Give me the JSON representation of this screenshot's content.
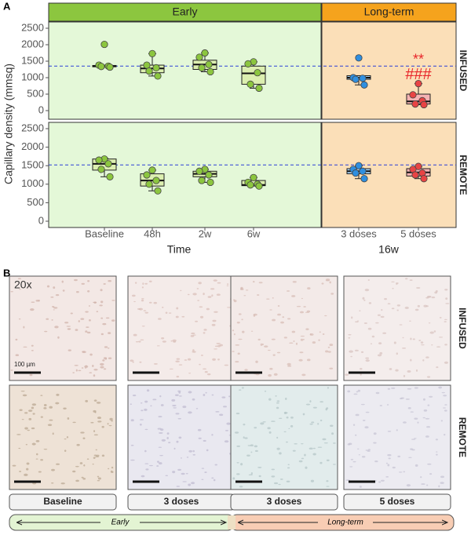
{
  "panel_a": {
    "label": "A",
    "y_label": "Capillary density (mmsq)",
    "groups": [
      {
        "name": "Early",
        "x_label": "Time",
        "header_color": "#8cc63f",
        "background": "#e4f8d8"
      },
      {
        "name": "Long-term",
        "x_label": "16w",
        "header_color": "#f5a31d",
        "background": "#fbdfb8"
      }
    ]
  },
  "chart_data": [
    {
      "type": "box",
      "row_label": "INFUSED",
      "ylim": [
        0,
        2500
      ],
      "yticks": [
        0,
        500,
        1000,
        1500,
        2000,
        2500
      ],
      "reference": 1350,
      "reference_color": "#2b3fd6",
      "boxes": [
        {
          "min": 1320,
          "q1": 1330,
          "median": 1350,
          "q3": 1370,
          "max": 1380,
          "points": [
            2010,
            1380,
            1350,
            1340,
            1320
          ],
          "color": "#8cc63f",
          "fill": "#dcefb0"
        },
        {
          "min": 1050,
          "q1": 1150,
          "median": 1280,
          "q3": 1380,
          "max": 1730,
          "points": [
            1730,
            1380,
            1300,
            1200,
            1050
          ],
          "color": "#8cc63f",
          "fill": "#dcefb0"
        },
        {
          "min": 1180,
          "q1": 1250,
          "median": 1400,
          "q3": 1530,
          "max": 1750,
          "points": [
            1750,
            1620,
            1400,
            1300,
            1180
          ],
          "color": "#8cc63f",
          "fill": "#dcefb0"
        },
        {
          "min": 680,
          "q1": 800,
          "median": 1130,
          "q3": 1350,
          "max": 1480,
          "points": [
            1480,
            1420,
            1150,
            800,
            680
          ],
          "color": "#8cc63f",
          "fill": "#dcefb0"
        },
        {
          "min": 780,
          "q1": 950,
          "median": 1000,
          "q3": 1060,
          "max": 1060,
          "points": [
            1600,
            1000,
            980,
            950,
            780
          ],
          "color": "#2f8fe0",
          "fill": "#a9d3f3"
        },
        {
          "min": 180,
          "q1": 200,
          "median": 280,
          "q3": 500,
          "max": 820,
          "points": [
            820,
            480,
            300,
            200,
            180
          ],
          "color": "#e84444",
          "fill": "#f5b3b3",
          "annotations": [
            "**",
            "###"
          ],
          "annotation_color": "#e8262a"
        }
      ]
    },
    {
      "type": "box",
      "row_label": "REMOTE",
      "ylim": [
        0,
        2500
      ],
      "yticks": [
        0,
        500,
        1000,
        1500,
        2000,
        2500
      ],
      "reference": 1520,
      "reference_color": "#2b3fd6",
      "categories": [
        "Baseline",
        "48h",
        "2w",
        "6w",
        "3 doses",
        "5 doses"
      ],
      "boxes": [
        {
          "min": 1200,
          "q1": 1380,
          "median": 1550,
          "q3": 1680,
          "max": 1700,
          "points": [
            1680,
            1650,
            1550,
            1400,
            1200
          ],
          "color": "#8cc63f",
          "fill": "#dcefb0"
        },
        {
          "min": 820,
          "q1": 950,
          "median": 1100,
          "q3": 1280,
          "max": 1380,
          "points": [
            1380,
            1250,
            1100,
            1000,
            820
          ],
          "color": "#8cc63f",
          "fill": "#dcefb0"
        },
        {
          "min": 1050,
          "q1": 1200,
          "median": 1280,
          "q3": 1350,
          "max": 1400,
          "points": [
            1400,
            1350,
            1250,
            1100,
            1050
          ],
          "color": "#8cc63f",
          "fill": "#dcefb0"
        },
        {
          "min": 950,
          "q1": 960,
          "median": 980,
          "q3": 1100,
          "max": 1180,
          "points": [
            1180,
            1050,
            1000,
            980,
            950
          ],
          "color": "#8cc63f",
          "fill": "#dcefb0"
        },
        {
          "min": 1150,
          "q1": 1280,
          "median": 1350,
          "q3": 1420,
          "max": 1500,
          "points": [
            1500,
            1400,
            1350,
            1300,
            1150
          ],
          "color": "#2f8fe0",
          "fill": "#a9d3f3"
        },
        {
          "min": 1150,
          "q1": 1220,
          "median": 1320,
          "q3": 1420,
          "max": 1480,
          "points": [
            1480,
            1400,
            1300,
            1250,
            1150
          ],
          "color": "#e84444",
          "fill": "#f5b3b3"
        }
      ]
    }
  ],
  "panel_b": {
    "label": "B",
    "magnification": "20x",
    "scale_bar": "100 µm",
    "rows": [
      "INFUSED",
      "REMOTE"
    ],
    "columns": [
      "Baseline",
      "3 doses",
      "3 doses",
      "5 doses"
    ],
    "timeline": [
      "Early",
      "Long-term"
    ]
  }
}
